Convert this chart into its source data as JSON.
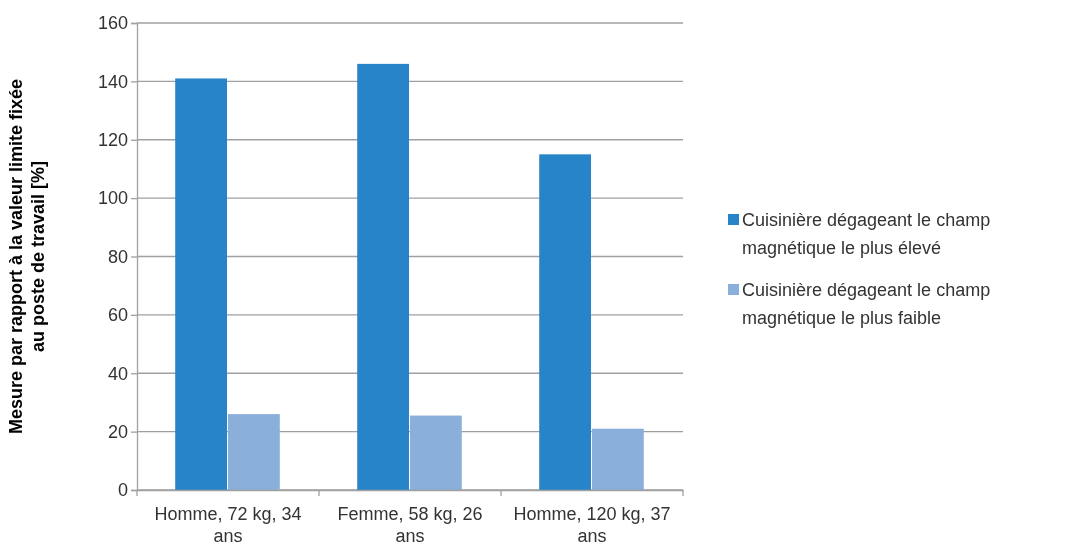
{
  "chart_data": {
    "type": "bar",
    "ylabel": "Mesure par rapport à la valeur limite fixée au poste de travail [%]",
    "categories": [
      "Homme, 72 kg, 34 ans",
      "Femme, 58 kg, 26 ans",
      "Homme, 120 kg, 37 ans"
    ],
    "series": [
      {
        "name": "Cuisinière dégageant le champ magnétique le plus élevé",
        "color": "#2784c8",
        "values": [
          141,
          146,
          115
        ]
      },
      {
        "name": "Cuisinière dégageant le champ magnétique le plus faible",
        "color": "#8aafdb",
        "values": [
          26,
          25.5,
          21
        ]
      }
    ],
    "ylim": [
      0,
      160
    ],
    "yticks": [
      0,
      20,
      40,
      60,
      80,
      100,
      120,
      140,
      160
    ],
    "grid": "y",
    "legend": "right"
  }
}
